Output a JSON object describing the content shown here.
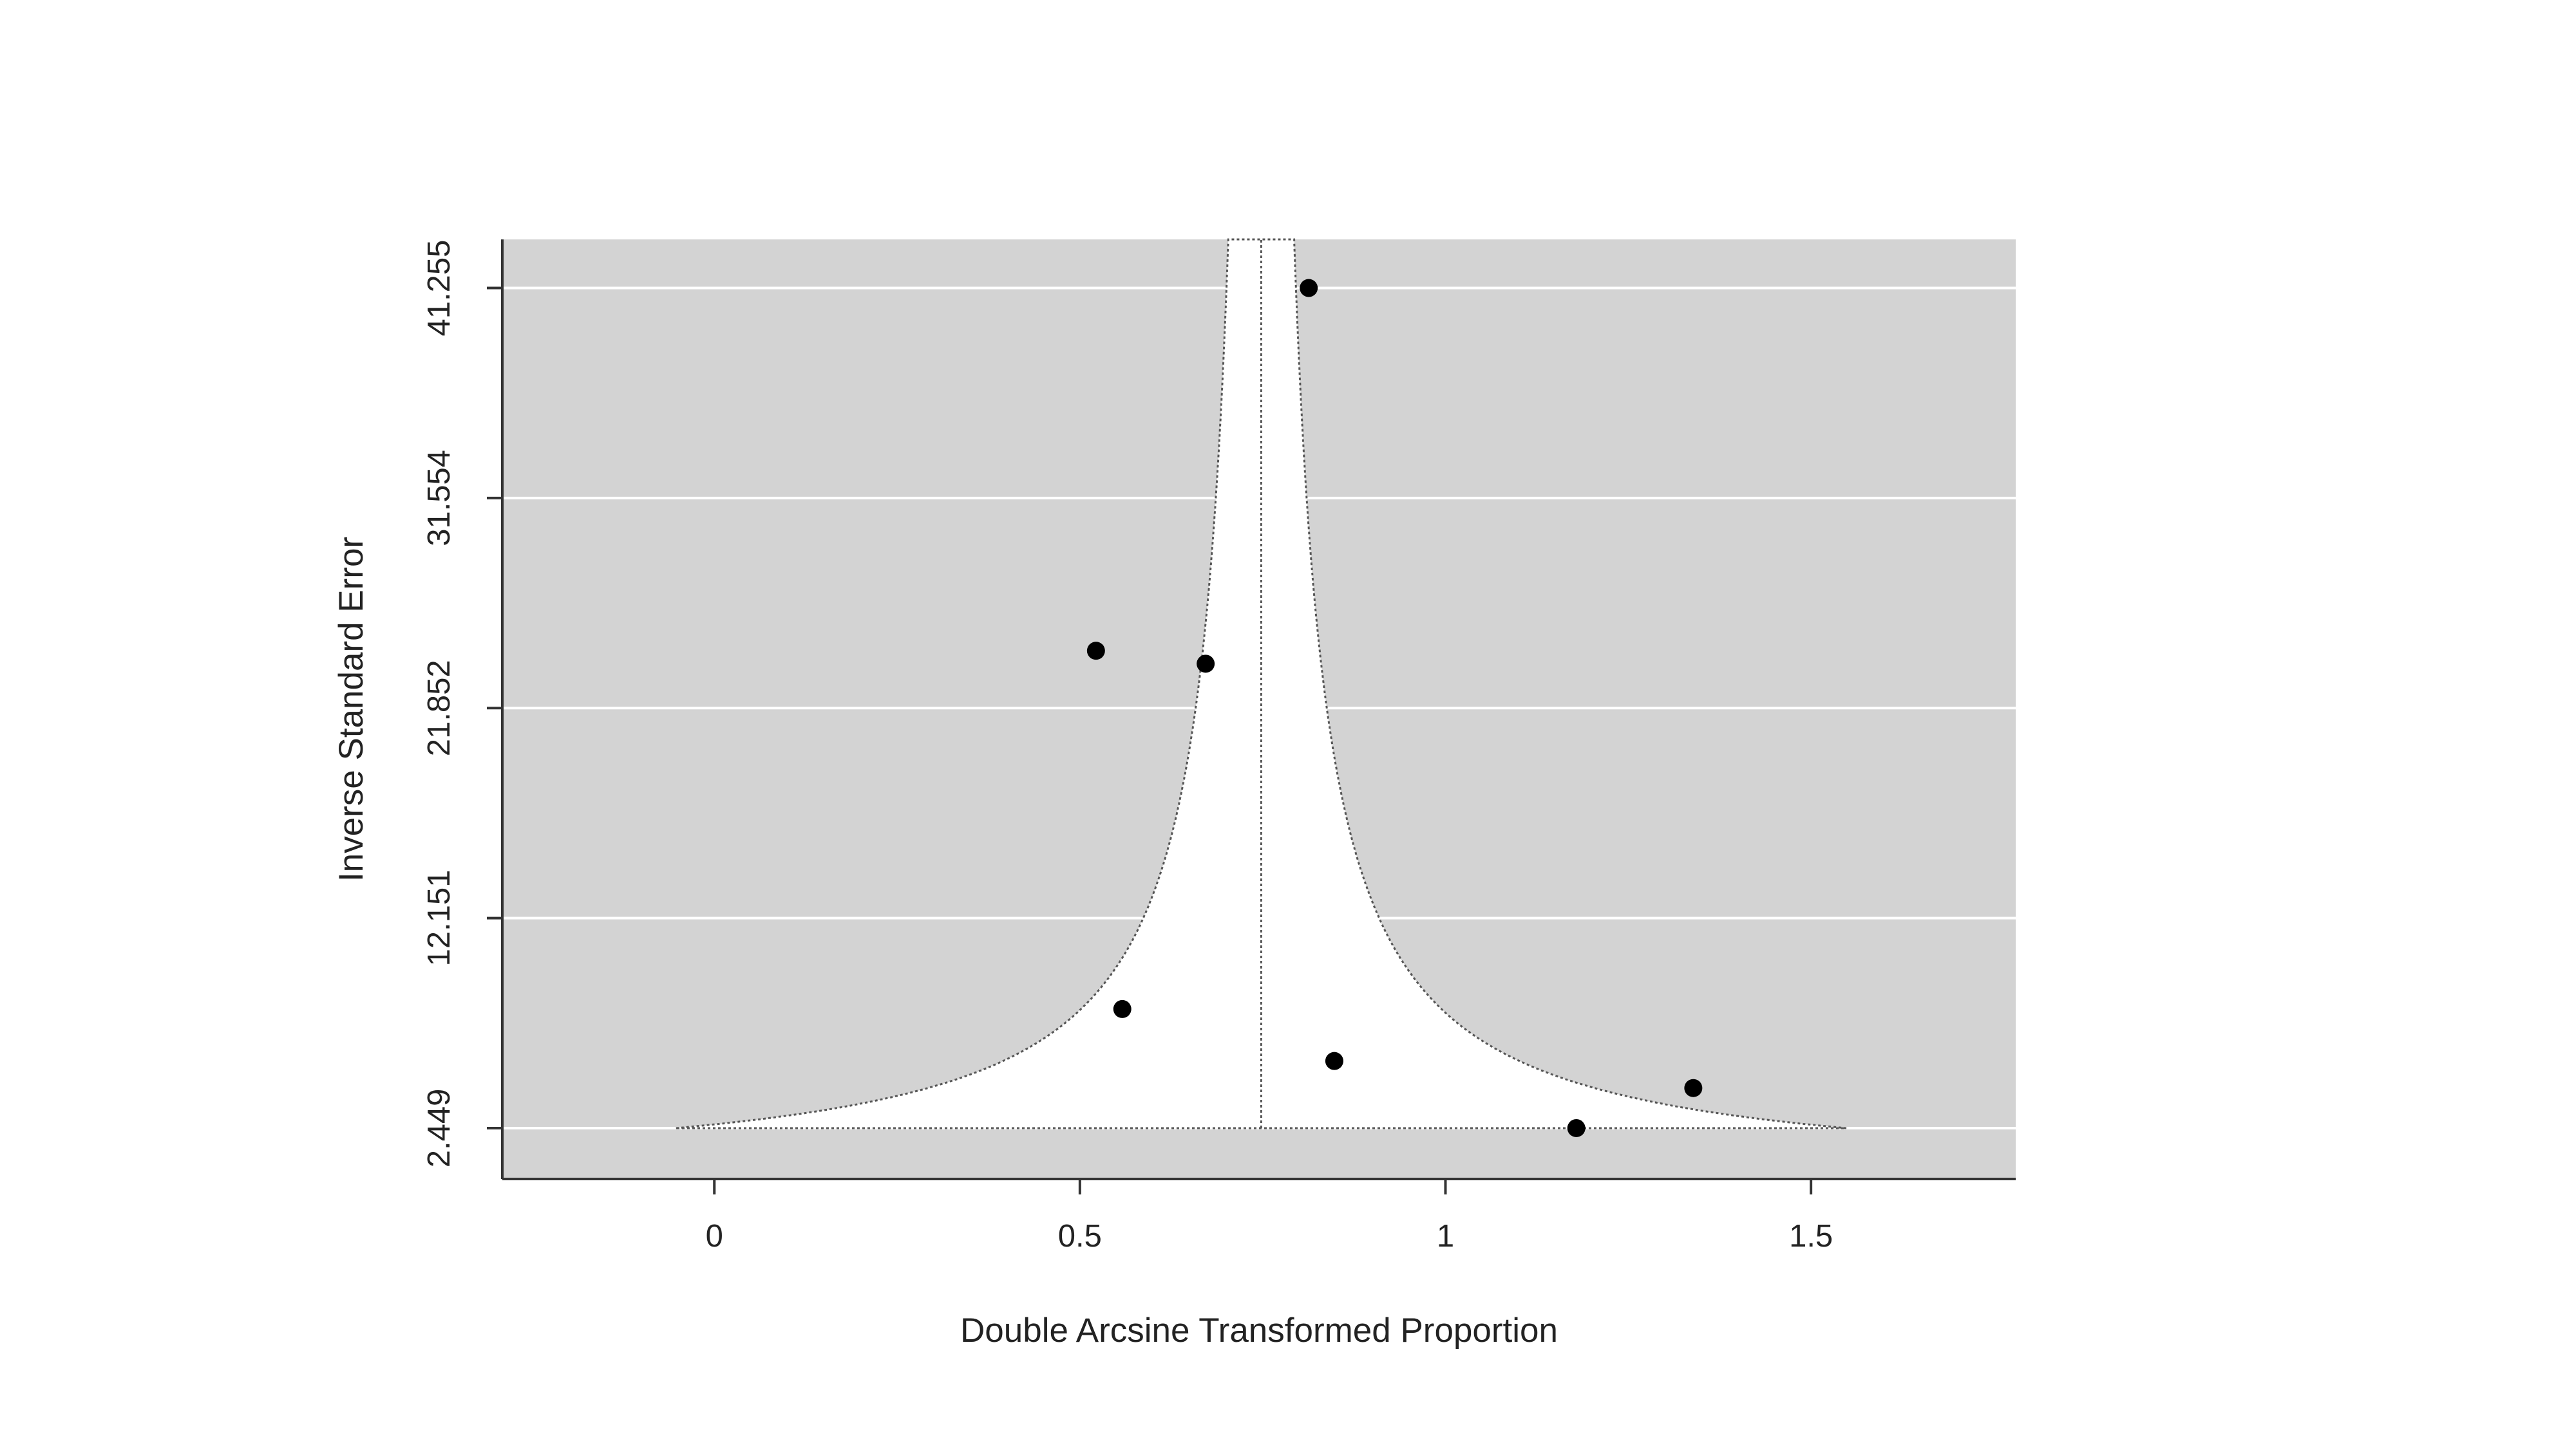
{
  "chart_data": {
    "type": "scatter",
    "subtype": "funnel-plot",
    "title": "",
    "xlabel": "Double Arcsine Transformed Proportion",
    "ylabel": "Inverse Standard Error",
    "xlim": [
      -0.29,
      1.78
    ],
    "ylim": [
      0.1,
      43.5
    ],
    "x_ticks": [
      0,
      0.5,
      1,
      1.5
    ],
    "x_tick_labels": [
      "0",
      "0.5",
      "1",
      "1.5"
    ],
    "y_ticks": [
      2.449,
      12.151,
      21.852,
      31.554,
      41.255
    ],
    "y_tick_labels": [
      "2.449",
      "12.151",
      "21.852",
      "31.554",
      "41.255"
    ],
    "grid": true,
    "legend": "none",
    "pooled_estimate": 0.748,
    "funnel_z": 1.96,
    "funnel_bottom_y": 2.449,
    "points": [
      {
        "x": 0.813,
        "y": 41.255
      },
      {
        "x": 0.522,
        "y": 24.5
      },
      {
        "x": 0.672,
        "y": 23.9
      },
      {
        "x": 0.558,
        "y": 7.95
      },
      {
        "x": 0.848,
        "y": 5.55
      },
      {
        "x": 1.339,
        "y": 4.3
      },
      {
        "x": 1.179,
        "y": 2.449
      }
    ],
    "colors": {
      "panel": "#d3d3d3",
      "funnel": "#ffffff",
      "gridline": "#ffffff",
      "point": "#000000",
      "axis": "#333333"
    }
  }
}
